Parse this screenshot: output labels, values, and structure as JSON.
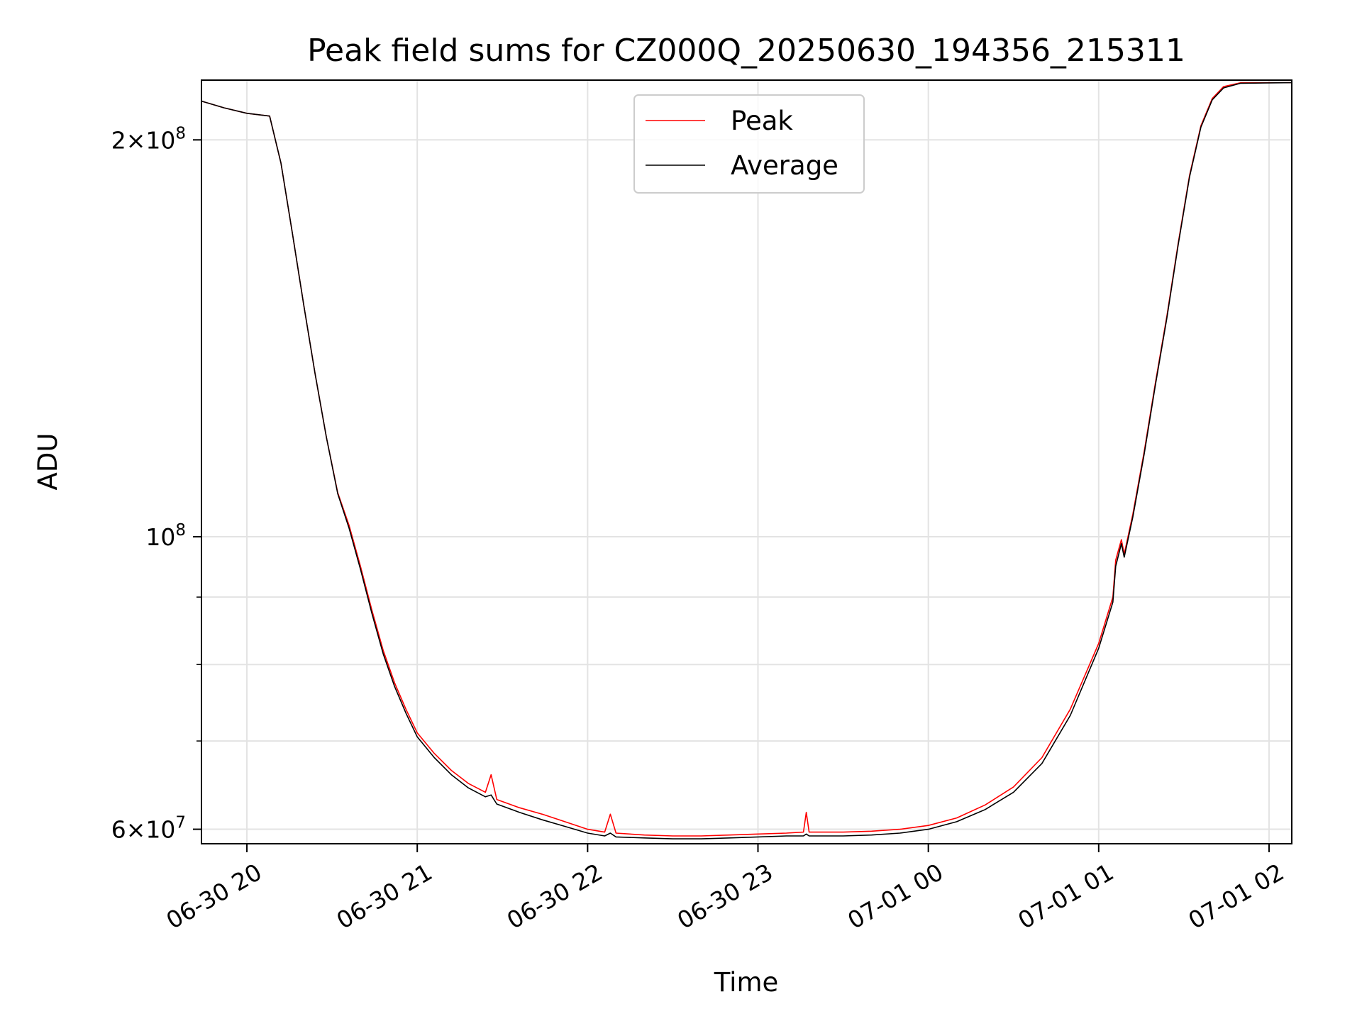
{
  "chart_data": {
    "type": "line",
    "title": "Peak field sums for CZ000Q_20250630_194356_215311",
    "xlabel": "Time",
    "ylabel": "ADU",
    "y_scale": "log",
    "x_range": [
      "2025-06-30 19:44",
      "2025-07-01 02:08"
    ],
    "ylim": [
      58500000,
      222000000
    ],
    "grid": true,
    "legend_position": "upper center",
    "x_ticks": [
      {
        "value": "2025-06-30 20:00",
        "label": "06-30 20"
      },
      {
        "value": "2025-06-30 21:00",
        "label": "06-30 21"
      },
      {
        "value": "2025-06-30 22:00",
        "label": "06-30 22"
      },
      {
        "value": "2025-06-30 23:00",
        "label": "06-30 23"
      },
      {
        "value": "2025-07-01 00:00",
        "label": "07-01 00"
      },
      {
        "value": "2025-07-01 01:00",
        "label": "07-01 01"
      },
      {
        "value": "2025-07-01 02:00",
        "label": "07-01 02"
      }
    ],
    "y_ticks_major": [
      {
        "value": 60000000,
        "base": "6",
        "exp": "7"
      },
      {
        "value": 100000000,
        "base": "",
        "exp": "8"
      },
      {
        "value": 200000000,
        "base": "2",
        "exp": "8"
      }
    ],
    "y_ticks_minor": [
      70000000,
      80000000,
      90000000
    ],
    "series": [
      {
        "name": "Peak",
        "color": "#ff0000",
        "points": [
          [
            "2025-06-30 19:44",
            214000000
          ],
          [
            "2025-06-30 19:52",
            211500000
          ],
          [
            "2025-06-30 20:00",
            209500000
          ],
          [
            "2025-06-30 20:08",
            208500000
          ],
          [
            "2025-06-30 20:12",
            192000000
          ],
          [
            "2025-06-30 20:16",
            170000000
          ],
          [
            "2025-06-30 20:20",
            150000000
          ],
          [
            "2025-06-30 20:24",
            133000000
          ],
          [
            "2025-06-30 20:28",
            119000000
          ],
          [
            "2025-06-30 20:32",
            108000000
          ],
          [
            "2025-06-30 20:36",
            102000000
          ],
          [
            "2025-06-30 20:40",
            95000000
          ],
          [
            "2025-06-30 20:44",
            88000000
          ],
          [
            "2025-06-30 20:48",
            82000000
          ],
          [
            "2025-06-30 20:52",
            77500000
          ],
          [
            "2025-06-30 20:56",
            74000000
          ],
          [
            "2025-06-30 21:00",
            71000000
          ],
          [
            "2025-06-30 21:06",
            68500000
          ],
          [
            "2025-06-30 21:12",
            66500000
          ],
          [
            "2025-06-30 21:18",
            65000000
          ],
          [
            "2025-06-30 21:24",
            64000000
          ],
          [
            "2025-06-30 21:26",
            66000000
          ],
          [
            "2025-06-30 21:28",
            63200000
          ],
          [
            "2025-06-30 21:36",
            62300000
          ],
          [
            "2025-06-30 21:44",
            61600000
          ],
          [
            "2025-06-30 21:52",
            60800000
          ],
          [
            "2025-06-30 22:00",
            60000000
          ],
          [
            "2025-06-30 22:06",
            59700000
          ],
          [
            "2025-06-30 22:08",
            61600000
          ],
          [
            "2025-06-30 22:10",
            59600000
          ],
          [
            "2025-06-30 22:20",
            59400000
          ],
          [
            "2025-06-30 22:30",
            59300000
          ],
          [
            "2025-06-30 22:40",
            59300000
          ],
          [
            "2025-06-30 22:50",
            59400000
          ],
          [
            "2025-06-30 23:00",
            59500000
          ],
          [
            "2025-06-30 23:10",
            59600000
          ],
          [
            "2025-06-30 23:16",
            59700000
          ],
          [
            "2025-06-30 23:17",
            61800000
          ],
          [
            "2025-06-30 23:18",
            59700000
          ],
          [
            "2025-06-30 23:30",
            59700000
          ],
          [
            "2025-06-30 23:40",
            59800000
          ],
          [
            "2025-06-30 23:50",
            60000000
          ],
          [
            "2025-07-01 00:00",
            60400000
          ],
          [
            "2025-07-01 00:10",
            61200000
          ],
          [
            "2025-07-01 00:20",
            62600000
          ],
          [
            "2025-07-01 00:30",
            64600000
          ],
          [
            "2025-07-01 00:40",
            68000000
          ],
          [
            "2025-07-01 00:50",
            74000000
          ],
          [
            "2025-07-01 01:00",
            83000000
          ],
          [
            "2025-07-01 01:05",
            90000000
          ],
          [
            "2025-07-01 01:06",
            96000000
          ],
          [
            "2025-07-01 01:08",
            99500000
          ],
          [
            "2025-07-01 01:09",
            97000000
          ],
          [
            "2025-07-01 01:12",
            104000000
          ],
          [
            "2025-07-01 01:16",
            116000000
          ],
          [
            "2025-07-01 01:20",
            131000000
          ],
          [
            "2025-07-01 01:24",
            147000000
          ],
          [
            "2025-07-01 01:28",
            167000000
          ],
          [
            "2025-07-01 01:32",
            188000000
          ],
          [
            "2025-07-01 01:36",
            205000000
          ],
          [
            "2025-07-01 01:40",
            215000000
          ],
          [
            "2025-07-01 01:44",
            219500000
          ],
          [
            "2025-07-01 01:50",
            221000000
          ],
          [
            "2025-07-01 02:08",
            221000000
          ]
        ]
      },
      {
        "name": "Average",
        "color": "#000000",
        "points": [
          [
            "2025-06-30 19:44",
            214000000
          ],
          [
            "2025-06-30 19:52",
            211500000
          ],
          [
            "2025-06-30 20:00",
            209500000
          ],
          [
            "2025-06-30 20:08",
            208500000
          ],
          [
            "2025-06-30 20:12",
            192000000
          ],
          [
            "2025-06-30 20:16",
            170000000
          ],
          [
            "2025-06-30 20:20",
            150000000
          ],
          [
            "2025-06-30 20:24",
            133000000
          ],
          [
            "2025-06-30 20:28",
            119000000
          ],
          [
            "2025-06-30 20:32",
            107800000
          ],
          [
            "2025-06-30 20:36",
            101500000
          ],
          [
            "2025-06-30 20:40",
            94500000
          ],
          [
            "2025-06-30 20:44",
            87500000
          ],
          [
            "2025-06-30 20:48",
            81500000
          ],
          [
            "2025-06-30 20:52",
            77000000
          ],
          [
            "2025-06-30 20:56",
            73500000
          ],
          [
            "2025-06-30 21:00",
            70500000
          ],
          [
            "2025-06-30 21:06",
            68000000
          ],
          [
            "2025-06-30 21:12",
            66000000
          ],
          [
            "2025-06-30 21:18",
            64500000
          ],
          [
            "2025-06-30 21:24",
            63500000
          ],
          [
            "2025-06-30 21:26",
            63700000
          ],
          [
            "2025-06-30 21:28",
            62700000
          ],
          [
            "2025-06-30 21:36",
            61800000
          ],
          [
            "2025-06-30 21:44",
            61000000
          ],
          [
            "2025-06-30 21:52",
            60300000
          ],
          [
            "2025-06-30 22:00",
            59600000
          ],
          [
            "2025-06-30 22:06",
            59300000
          ],
          [
            "2025-06-30 22:08",
            59600000
          ],
          [
            "2025-06-30 22:10",
            59200000
          ],
          [
            "2025-06-30 22:20",
            59100000
          ],
          [
            "2025-06-30 22:30",
            59000000
          ],
          [
            "2025-06-30 22:40",
            59000000
          ],
          [
            "2025-06-30 22:50",
            59100000
          ],
          [
            "2025-06-30 23:00",
            59200000
          ],
          [
            "2025-06-30 23:10",
            59300000
          ],
          [
            "2025-06-30 23:16",
            59300000
          ],
          [
            "2025-06-30 23:17",
            59500000
          ],
          [
            "2025-06-30 23:18",
            59300000
          ],
          [
            "2025-06-30 23:30",
            59300000
          ],
          [
            "2025-06-30 23:40",
            59400000
          ],
          [
            "2025-06-30 23:50",
            59600000
          ],
          [
            "2025-07-01 00:00",
            60000000
          ],
          [
            "2025-07-01 00:10",
            60800000
          ],
          [
            "2025-07-01 00:20",
            62100000
          ],
          [
            "2025-07-01 00:30",
            64000000
          ],
          [
            "2025-07-01 00:40",
            67300000
          ],
          [
            "2025-07-01 00:50",
            73200000
          ],
          [
            "2025-07-01 01:00",
            82300000
          ],
          [
            "2025-07-01 01:05",
            89200000
          ],
          [
            "2025-07-01 01:06",
            95000000
          ],
          [
            "2025-07-01 01:08",
            98800000
          ],
          [
            "2025-07-01 01:09",
            96500000
          ],
          [
            "2025-07-01 01:12",
            103500000
          ],
          [
            "2025-07-01 01:16",
            115500000
          ],
          [
            "2025-07-01 01:20",
            130500000
          ],
          [
            "2025-07-01 01:24",
            146500000
          ],
          [
            "2025-07-01 01:28",
            166500000
          ],
          [
            "2025-07-01 01:32",
            187500000
          ],
          [
            "2025-07-01 01:36",
            204500000
          ],
          [
            "2025-07-01 01:40",
            214500000
          ],
          [
            "2025-07-01 01:44",
            219000000
          ],
          [
            "2025-07-01 01:50",
            220800000
          ],
          [
            "2025-07-01 02:08",
            221000000
          ]
        ]
      }
    ]
  }
}
